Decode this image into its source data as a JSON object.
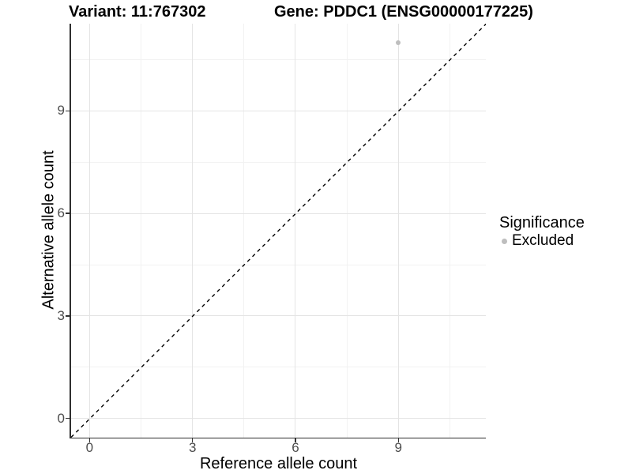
{
  "titles": {
    "variant": "Variant: 11:767302",
    "gene": "Gene: PDDC1 (ENSG00000177225)"
  },
  "legend": {
    "title": "Significance",
    "items": [
      {
        "label": "Excluded",
        "color": "#bebebe"
      }
    ]
  },
  "colors": {
    "background": "#ffffff",
    "grid_major": "#e4e4e4",
    "grid_minor": "#f2f2f2",
    "axis_line": "#2f2f2f",
    "tick_mark": "#333333",
    "tick_label": "#4d4d4d",
    "title_text": "#000000",
    "point": "#bebebe",
    "reference_line": "#000000"
  },
  "chart_data": {
    "type": "scatter",
    "title": "Variant: 11:767302 | Gene: PDDC1 (ENSG00000177225)",
    "xlabel": "Reference allele count",
    "ylabel": "Alternative allele count",
    "xlim": [
      -0.55,
      11.55
    ],
    "ylim": [
      -0.55,
      11.55
    ],
    "x_major_ticks": [
      0,
      3,
      6,
      9
    ],
    "y_major_ticks": [
      0,
      3,
      6,
      9
    ],
    "x_minor_ticks": [
      1.5,
      4.5,
      7.5,
      10.5
    ],
    "y_minor_ticks": [
      1.5,
      4.5,
      7.5,
      10.5
    ],
    "grid": "major+minor",
    "legend_position": "right",
    "series": [
      {
        "name": "Excluded",
        "color": "#bebebe",
        "points": [
          {
            "x": 9,
            "y": 11
          }
        ]
      }
    ],
    "reference_line": {
      "equation": "y = x",
      "style": "dashed",
      "color": "#000000",
      "x1": -0.55,
      "y1": -0.55,
      "x2": 11.55,
      "y2": 11.55
    }
  }
}
